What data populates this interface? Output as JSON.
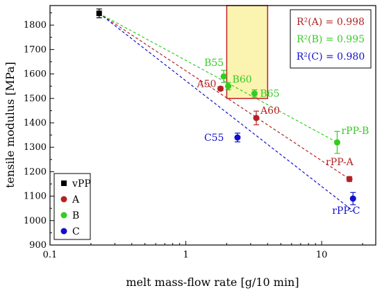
{
  "chart_data": {
    "type": "scatter",
    "xlabel": "melt mass-flow rate [g/10 min]",
    "ylabel": "tensile modulus [MPa]",
    "xscale": "log",
    "xlim": [
      0.1,
      25
    ],
    "ylim": [
      900,
      1880
    ],
    "x_ticks": [
      {
        "value": 0.1,
        "label": "0.1"
      },
      {
        "value": 1,
        "label": "1"
      },
      {
        "value": 10,
        "label": "10"
      }
    ],
    "y_ticks": [
      900,
      1000,
      1100,
      1200,
      1300,
      1400,
      1500,
      1600,
      1700,
      1800
    ],
    "grid": false,
    "legend_position": "bottom-left",
    "legend": [
      {
        "label": "vPP",
        "marker": "square",
        "color": "#000000"
      },
      {
        "label": "A",
        "marker": "circle",
        "color": "#b22222"
      },
      {
        "label": "B",
        "marker": "circle",
        "color": "#33cc22"
      },
      {
        "label": "C",
        "marker": "circle",
        "color": "#1010cc"
      }
    ],
    "series": [
      {
        "name": "vPP",
        "color": "#000000",
        "marker": "square",
        "points": [
          {
            "x": 0.23,
            "y": 1848,
            "err": 18,
            "label": ""
          }
        ]
      },
      {
        "name": "A",
        "color": "#b22222",
        "marker": "circle",
        "points": [
          {
            "x": 1.8,
            "y": 1540,
            "err": 8,
            "label": "A50"
          },
          {
            "x": 3.3,
            "y": 1420,
            "err": 28,
            "label": "A60"
          },
          {
            "x": 16,
            "y": 1170,
            "err": 10,
            "label": "rPP-A"
          }
        ]
      },
      {
        "name": "B",
        "color": "#33cc22",
        "marker": "circle",
        "points": [
          {
            "x": 1.9,
            "y": 1590,
            "err": 25,
            "label": "B55"
          },
          {
            "x": 2.05,
            "y": 1550,
            "err": 15,
            "label": "B60"
          },
          {
            "x": 3.2,
            "y": 1520,
            "err": 15,
            "label": "B65"
          },
          {
            "x": 13,
            "y": 1320,
            "err": 45,
            "label": "rPP-B"
          }
        ]
      },
      {
        "name": "C",
        "color": "#1010cc",
        "marker": "circle",
        "points": [
          {
            "x": 2.4,
            "y": 1340,
            "err": 18,
            "label": "C55"
          },
          {
            "x": 17,
            "y": 1090,
            "err": 25,
            "label": "rPP-C"
          }
        ]
      }
    ],
    "trend_lines": [
      {
        "series": "A",
        "color": "#b22222",
        "x": [
          0.23,
          16
        ],
        "y": [
          1848,
          1170
        ]
      },
      {
        "series": "B",
        "color": "#33cc22",
        "x": [
          0.23,
          13
        ],
        "y": [
          1848,
          1320
        ]
      },
      {
        "series": "C",
        "color": "#1010cc",
        "x": [
          0.23,
          17
        ],
        "y": [
          1848,
          1040
        ]
      }
    ],
    "annotations": [
      {
        "text": "R²(A) = 0.998",
        "color": "#b22222"
      },
      {
        "text": "R²(B) = 0.995",
        "color": "#33cc22"
      },
      {
        "text": "R²(C) = 0.980",
        "color": "#1010cc"
      }
    ],
    "highlight_region": {
      "x": [
        2,
        4
      ],
      "y": [
        1500,
        1880
      ],
      "fill": "#fbf3b0",
      "stroke": "#c21e1e"
    }
  }
}
